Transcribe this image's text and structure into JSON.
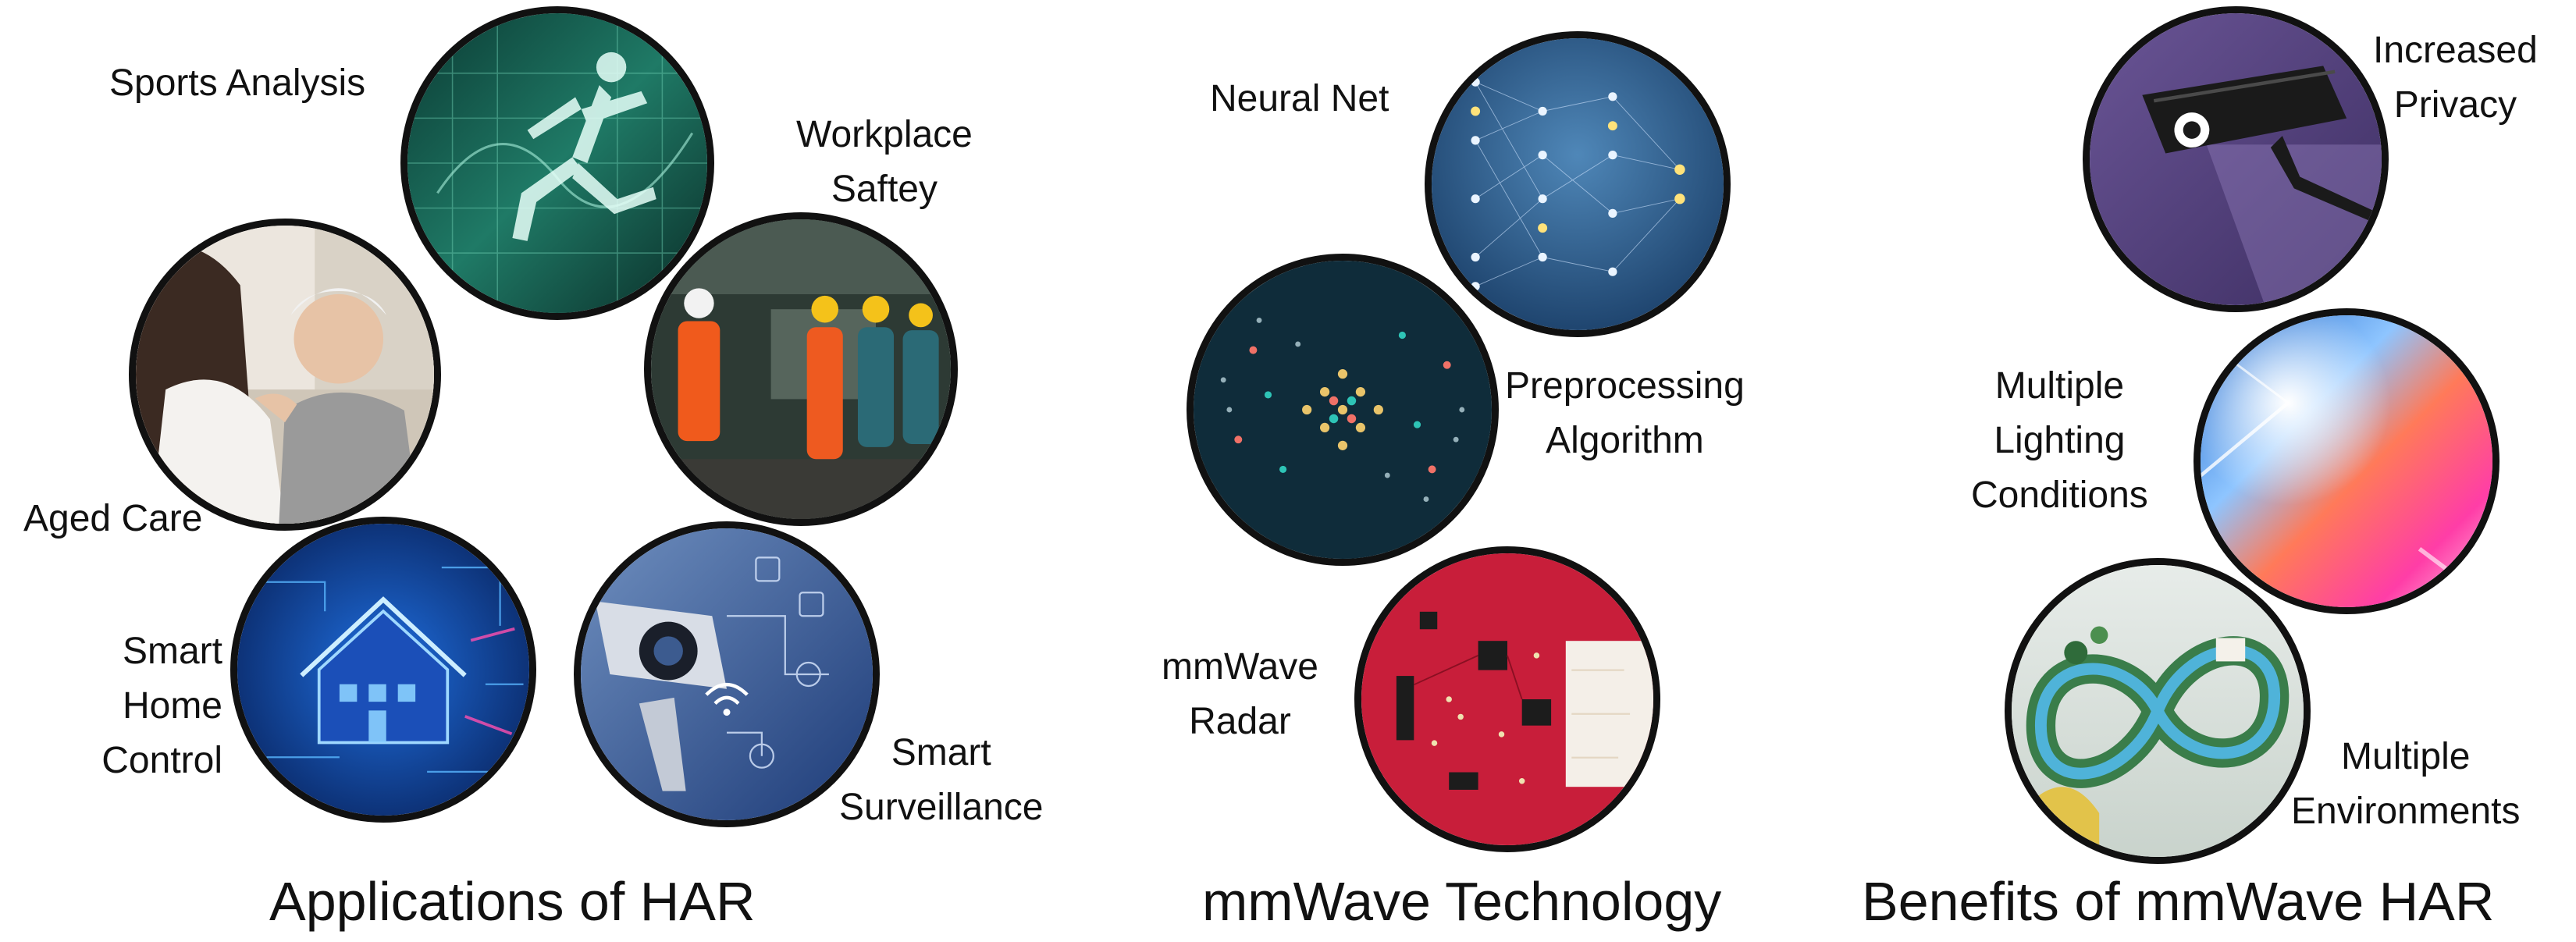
{
  "sections": {
    "applications": {
      "title": "Applications of HAR",
      "items": {
        "sports": "Sports Analysis",
        "workplace": [
          "Workplace",
          "Saftey"
        ],
        "aged_care": "Aged Care",
        "smart_home": [
          "Smart",
          "Home",
          "Control"
        ],
        "surveillance": [
          "Smart",
          "Surveillance"
        ]
      }
    },
    "mmwave": {
      "title": "mmWave Technology",
      "items": {
        "neural_net": "Neural Net",
        "preprocessing": [
          "Preprocessing",
          "Algorithm"
        ],
        "radar": [
          "mmWave",
          "Radar"
        ]
      }
    },
    "benefits": {
      "title": "Benefits of mmWave HAR",
      "items": {
        "privacy": [
          "Increased",
          "Privacy"
        ],
        "lighting": [
          "Multiple",
          "Lighting",
          "Conditions"
        ],
        "environments": [
          "Multiple",
          "Environments"
        ]
      }
    }
  },
  "images": {
    "sports": "running-figure-image",
    "aged_care": "caregiver-elderly-image",
    "workplace": "factory-workers-image",
    "smart_home": "smart-house-circuit-image",
    "surveillance": "security-camera-network-image",
    "neural_net": "neural-network-image",
    "preprocessing": "dot-matrix-signal-image",
    "radar": "radar-circuit-board-image",
    "privacy": "cctv-camera-image",
    "lighting": "colorful-light-image",
    "environments": "infinity-landscape-image"
  },
  "colors": {
    "outline": "#111111",
    "text": "#111111",
    "background": "#ffffff"
  }
}
